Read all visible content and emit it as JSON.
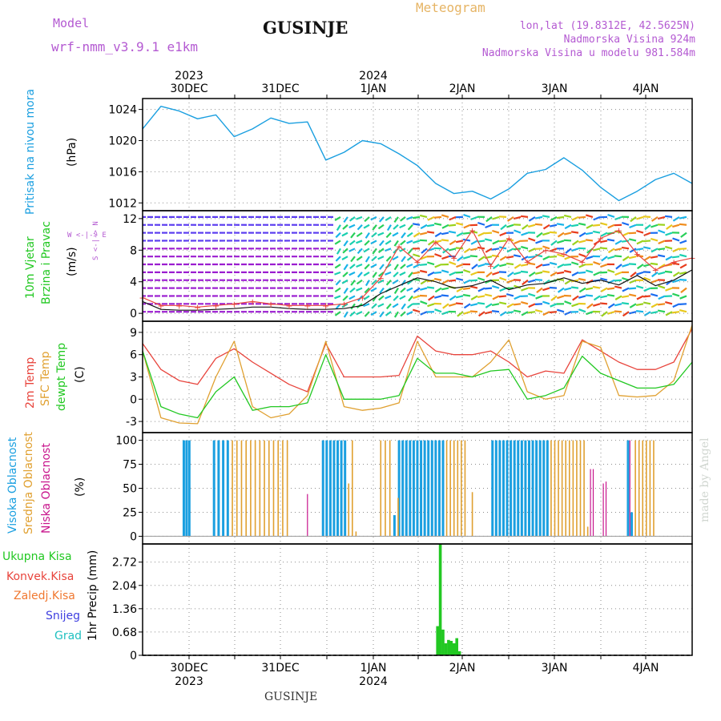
{
  "header": {
    "model_label": "Model",
    "model_name": "wrf-nmm_v3.9.1  e1km",
    "title": "GUSINJE",
    "meteogram": "Meteogram",
    "coords": "lon,lat (19.8312E, 42.5625N)",
    "elevation": "Nadmorska Visina 924m",
    "model_elevation": "Nadmorska Visina u modelu 981.584m"
  },
  "footer": {
    "station": "GUSINJE",
    "credit": "made by Angel"
  },
  "time_axis": {
    "days": [
      "30DEC",
      "31DEC",
      "1JAN",
      "2JAN",
      "3JAN",
      "4JAN"
    ],
    "years_top": [
      "2023",
      "2024"
    ],
    "years_bottom": [
      "2023",
      "2024"
    ]
  },
  "panel_labels": {
    "pressure": [
      "Pritisak na nivou mora",
      "(hPa)"
    ],
    "wind": [
      "10m Vjetar",
      "Brzina i Pravac",
      "(m/s)"
    ],
    "compass": [
      "W",
      "<-|->",
      "E",
      "N",
      "<-|->",
      "S"
    ],
    "temp": [
      "2m Temp",
      "SFC Temp",
      "dewpt Temp",
      "(C)"
    ],
    "cloud": [
      "Visoka Oblacnost",
      "Srednja Oblacnost",
      "Niska Oblacnost",
      "(%)"
    ],
    "precip": [
      "Ukupna Kisa",
      "Konvek.Kisa",
      "Zaledj.Kisa",
      "Snijeg",
      "Grad",
      "1hr Precip (mm)"
    ]
  },
  "colors": {
    "pressure": "#1a9fe0",
    "t2m": "#e8443c",
    "tsfc": "#e0a030",
    "dewpt": "#22c822",
    "high_cloud": "#1a9fe0",
    "mid_cloud": "#e0a030",
    "low_cloud": "#c8148c",
    "precip_total": "#22c822",
    "convective": "#e8443c",
    "freezing": "#f07830",
    "snow": "#4040e0",
    "hail": "#20c0c0",
    "model_text": "#b45ad2",
    "meteogram_text": "#e6b464"
  },
  "chart_data": [
    {
      "type": "line",
      "name": "pressure",
      "ylim": [
        1011,
        1025.4
      ],
      "yticks": [
        1012,
        1016,
        1020,
        1024
      ],
      "x": [
        0,
        1,
        2,
        3,
        4,
        5,
        6,
        7,
        8,
        9,
        10,
        11,
        12,
        13,
        14,
        15,
        16,
        17,
        18,
        19,
        20,
        21,
        22,
        23,
        24,
        25,
        26,
        27,
        28,
        29,
        30
      ],
      "series": [
        {
          "name": "Pritisak na nivou mora",
          "values": [
            1021.5,
            1024.4,
            1023.8,
            1022.8,
            1023.3,
            1020.5,
            1021.5,
            1022.9,
            1022.2,
            1022.4,
            1017.5,
            1018.5,
            1020.0,
            1019.6,
            1018.3,
            1016.8,
            1014.5,
            1013.2,
            1013.5,
            1012.5,
            1013.8,
            1015.8,
            1016.3,
            1017.8,
            1016.2,
            1014.0,
            1012.3,
            1013.5,
            1015.0,
            1015.8,
            1014.5
          ]
        }
      ]
    },
    {
      "type": "line",
      "name": "wind",
      "ylim": [
        -1,
        13
      ],
      "yticks": [
        0,
        4,
        8,
        12
      ],
      "x": [
        0,
        1,
        2,
        3,
        4,
        5,
        6,
        7,
        8,
        9,
        10,
        11,
        12,
        13,
        14,
        15,
        16,
        17,
        18,
        19,
        20,
        21,
        22,
        23,
        24,
        25,
        26,
        27,
        28,
        29,
        30
      ],
      "series": [
        {
          "name": "speed",
          "values": [
            1.5,
            0.5,
            0.4,
            0.4,
            0.5,
            0.6,
            0.8,
            0.8,
            0.6,
            0.5,
            0.5,
            0.6,
            1.0,
            2.5,
            3.5,
            4.5,
            4.0,
            3.2,
            3.5,
            4.2,
            3.0,
            3.6,
            3.8,
            4.5,
            3.8,
            4.2,
            3.6,
            4.8,
            3.5,
            4.2,
            5.5
          ]
        },
        {
          "name": "gust",
          "values": [
            2.0,
            1.0,
            1.0,
            0.8,
            1.0,
            1.2,
            1.5,
            1.2,
            1.0,
            1.0,
            1.0,
            1.2,
            2.0,
            4.5,
            8.5,
            6.5,
            9.0,
            7.0,
            10.5,
            6.0,
            9.5,
            6.5,
            8.0,
            7.5,
            6.5,
            9.5,
            10.5,
            7.5,
            5.5,
            6.5,
            7.0
          ]
        }
      ]
    },
    {
      "type": "line",
      "name": "temperature",
      "ylim": [
        -4.5,
        10.5
      ],
      "yticks": [
        -3,
        0,
        3,
        6,
        9
      ],
      "x": [
        0,
        1,
        2,
        3,
        4,
        5,
        6,
        7,
        8,
        9,
        10,
        11,
        12,
        13,
        14,
        15,
        16,
        17,
        18,
        19,
        20,
        21,
        22,
        23,
        24,
        25,
        26,
        27,
        28,
        29,
        30
      ],
      "series": [
        {
          "name": "2m Temp",
          "values": [
            7.5,
            4.0,
            2.5,
            2.0,
            5.5,
            6.8,
            5.0,
            3.5,
            2.0,
            1.0,
            7.5,
            3.0,
            3.0,
            3.0,
            3.2,
            8.5,
            6.5,
            6.0,
            6.0,
            6.5,
            5.0,
            3.0,
            3.8,
            3.5,
            8.0,
            6.5,
            5.0,
            4.0,
            4.0,
            5.0,
            9.5
          ]
        },
        {
          "name": "SFC Temp",
          "values": [
            6.5,
            -2.5,
            -3.2,
            -3.3,
            3.0,
            7.8,
            -1.0,
            -2.5,
            -2.0,
            0.5,
            7.8,
            -1.0,
            -1.5,
            -1.2,
            -0.5,
            7.8,
            3.0,
            3.0,
            3.0,
            5.0,
            8.0,
            1.0,
            0.0,
            0.5,
            7.8,
            7.0,
            0.5,
            0.3,
            0.5,
            2.5,
            10.0
          ]
        },
        {
          "name": "dewpt Temp",
          "values": [
            6.5,
            -1.0,
            -2.0,
            -2.5,
            1.0,
            3.0,
            -1.5,
            -1.0,
            -1.0,
            -0.5,
            6.0,
            0.0,
            0.0,
            0.0,
            0.5,
            5.5,
            3.5,
            3.5,
            3.0,
            3.8,
            4.0,
            0.0,
            0.5,
            1.5,
            5.8,
            3.5,
            2.5,
            1.5,
            1.5,
            2.0,
            5.0
          ]
        }
      ]
    },
    {
      "type": "bar",
      "name": "cloud",
      "ylim": [
        -8,
        108
      ],
      "yticks": [
        0,
        25,
        50,
        75,
        100
      ],
      "series": [
        {
          "name": "Visoka Oblacnost",
          "bars": [
            [
              4.5,
              100
            ],
            [
              4.8,
              100
            ],
            [
              5.1,
              100
            ],
            [
              7.8,
              100
            ],
            [
              8.3,
              100
            ],
            [
              8.8,
              100
            ],
            [
              9.3,
              100
            ],
            [
              19.7,
              100
            ],
            [
              20.1,
              100
            ],
            [
              20.5,
              100
            ],
            [
              20.9,
              100
            ],
            [
              21.3,
              100
            ],
            [
              21.7,
              100
            ],
            [
              22.1,
              100
            ],
            [
              27.5,
              22
            ],
            [
              28.0,
              100
            ],
            [
              28.4,
              100
            ],
            [
              28.8,
              100
            ],
            [
              29.2,
              100
            ],
            [
              29.6,
              100
            ],
            [
              30.0,
              100
            ],
            [
              30.4,
              100
            ],
            [
              30.8,
              100
            ],
            [
              31.2,
              100
            ],
            [
              31.6,
              100
            ],
            [
              32.0,
              100
            ],
            [
              32.4,
              100
            ],
            [
              32.8,
              100
            ],
            [
              38.2,
              100
            ],
            [
              38.6,
              100
            ],
            [
              39.0,
              100
            ],
            [
              39.4,
              100
            ],
            [
              39.8,
              100
            ],
            [
              40.2,
              100
            ],
            [
              40.6,
              100
            ],
            [
              41.0,
              100
            ],
            [
              41.4,
              100
            ],
            [
              41.8,
              100
            ],
            [
              42.2,
              100
            ],
            [
              42.6,
              100
            ],
            [
              43.0,
              100
            ],
            [
              43.4,
              100
            ],
            [
              43.8,
              100
            ],
            [
              44.2,
              100
            ],
            [
              53.0,
              100
            ],
            [
              53.4,
              25
            ]
          ]
        },
        {
          "name": "Srednja Oblacnost",
          "bars": [
            [
              9.8,
              100
            ],
            [
              10.3,
              100
            ],
            [
              10.8,
              100
            ],
            [
              11.3,
              100
            ],
            [
              11.8,
              100
            ],
            [
              12.3,
              100
            ],
            [
              12.8,
              100
            ],
            [
              13.3,
              100
            ],
            [
              13.8,
              100
            ],
            [
              14.3,
              100
            ],
            [
              14.8,
              100
            ],
            [
              15.3,
              100
            ],
            [
              15.8,
              100
            ],
            [
              22.5,
              55
            ],
            [
              22.9,
              100
            ],
            [
              23.3,
              5
            ],
            [
              26.0,
              100
            ],
            [
              26.5,
              100
            ],
            [
              27.0,
              100
            ],
            [
              27.9,
              40
            ],
            [
              33.2,
              100
            ],
            [
              33.6,
              100
            ],
            [
              34.0,
              100
            ],
            [
              34.4,
              100
            ],
            [
              34.8,
              100
            ],
            [
              35.2,
              100
            ],
            [
              36.0,
              46
            ],
            [
              44.6,
              100
            ],
            [
              45.0,
              100
            ],
            [
              45.4,
              100
            ],
            [
              45.8,
              100
            ],
            [
              46.2,
              100
            ],
            [
              46.6,
              100
            ],
            [
              47.0,
              100
            ],
            [
              47.4,
              100
            ],
            [
              47.8,
              100
            ],
            [
              48.2,
              100
            ],
            [
              48.6,
              10
            ],
            [
              53.8,
              100
            ],
            [
              54.2,
              100
            ],
            [
              54.6,
              100
            ],
            [
              55.0,
              100
            ],
            [
              55.4,
              100
            ],
            [
              55.8,
              100
            ]
          ]
        },
        {
          "name": "Niska Oblacnost",
          "bars": [
            [
              18.0,
              44
            ],
            [
              48.9,
              70
            ],
            [
              49.2,
              70
            ],
            [
              50.3,
              55
            ],
            [
              50.6,
              57
            ],
            [
              53.2,
              100
            ]
          ]
        }
      ]
    },
    {
      "type": "bar",
      "name": "precipitation",
      "ylim": [
        0,
        3.25
      ],
      "yticks": [
        0,
        0.68,
        1.36,
        2.04,
        2.72
      ],
      "series": [
        {
          "name": "Ukupna Kisa",
          "bars": [
            [
              32.2,
              0.85
            ],
            [
              32.5,
              3.25
            ],
            [
              32.8,
              0.75
            ],
            [
              33.1,
              0.35
            ],
            [
              33.4,
              0.45
            ],
            [
              33.7,
              0.42
            ],
            [
              34.0,
              0.35
            ],
            [
              34.3,
              0.5
            ],
            [
              34.6,
              0.12
            ]
          ]
        }
      ]
    }
  ]
}
